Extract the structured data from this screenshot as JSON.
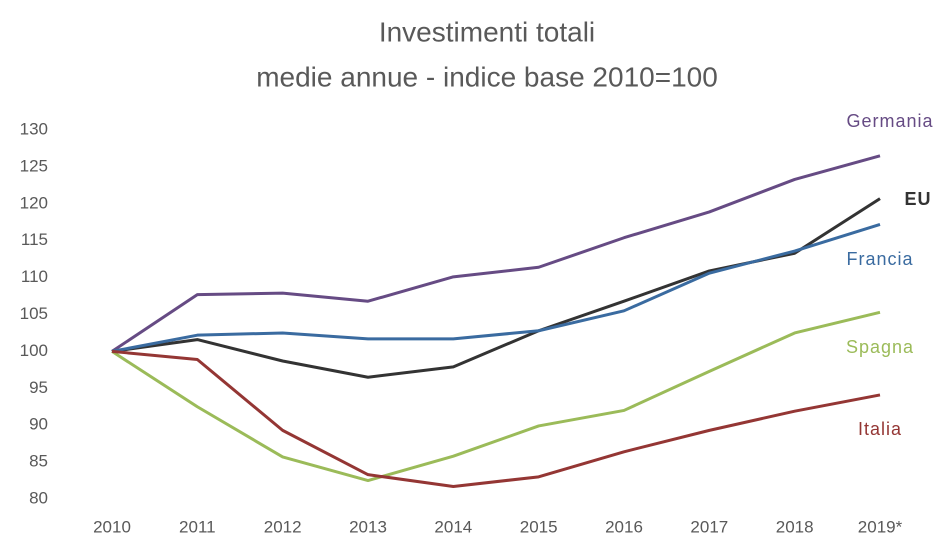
{
  "chart_data": {
    "type": "line",
    "title": "Investimenti totali",
    "subtitle": "medie annue - indice base 2010=100",
    "categories": [
      "2010",
      "2011",
      "2012",
      "2013",
      "2014",
      "2015",
      "2016",
      "2017",
      "2018",
      "2019*"
    ],
    "series": [
      {
        "name": "Germania",
        "color": "#664b84",
        "values": [
          100,
          107.7,
          107.9,
          106.8,
          110.1,
          111.4,
          115.4,
          118.9,
          123.3,
          126.5
        ]
      },
      {
        "name": "EU",
        "color": "#333333",
        "values": [
          100,
          101.6,
          98.7,
          96.5,
          97.9,
          102.8,
          106.8,
          110.9,
          113.3,
          120.7
        ]
      },
      {
        "name": "Francia",
        "color": "#3a6ba0",
        "values": [
          100,
          102.2,
          102.5,
          101.7,
          101.7,
          102.8,
          105.5,
          110.6,
          113.6,
          117.2
        ]
      },
      {
        "name": "Spagna",
        "color": "#9bbb59",
        "values": [
          100,
          92.5,
          85.7,
          82.5,
          85.8,
          89.9,
          92.0,
          97.3,
          102.5,
          105.3
        ]
      },
      {
        "name": "Italia",
        "color": "#943634",
        "values": [
          100,
          98.9,
          89.3,
          83.3,
          81.7,
          83.0,
          86.4,
          89.3,
          91.9,
          94.1
        ]
      }
    ],
    "ylim": [
      80,
      130
    ],
    "yticks": [
      80,
      85,
      90,
      95,
      100,
      105,
      110,
      115,
      120,
      125,
      130
    ],
    "grid": false
  }
}
